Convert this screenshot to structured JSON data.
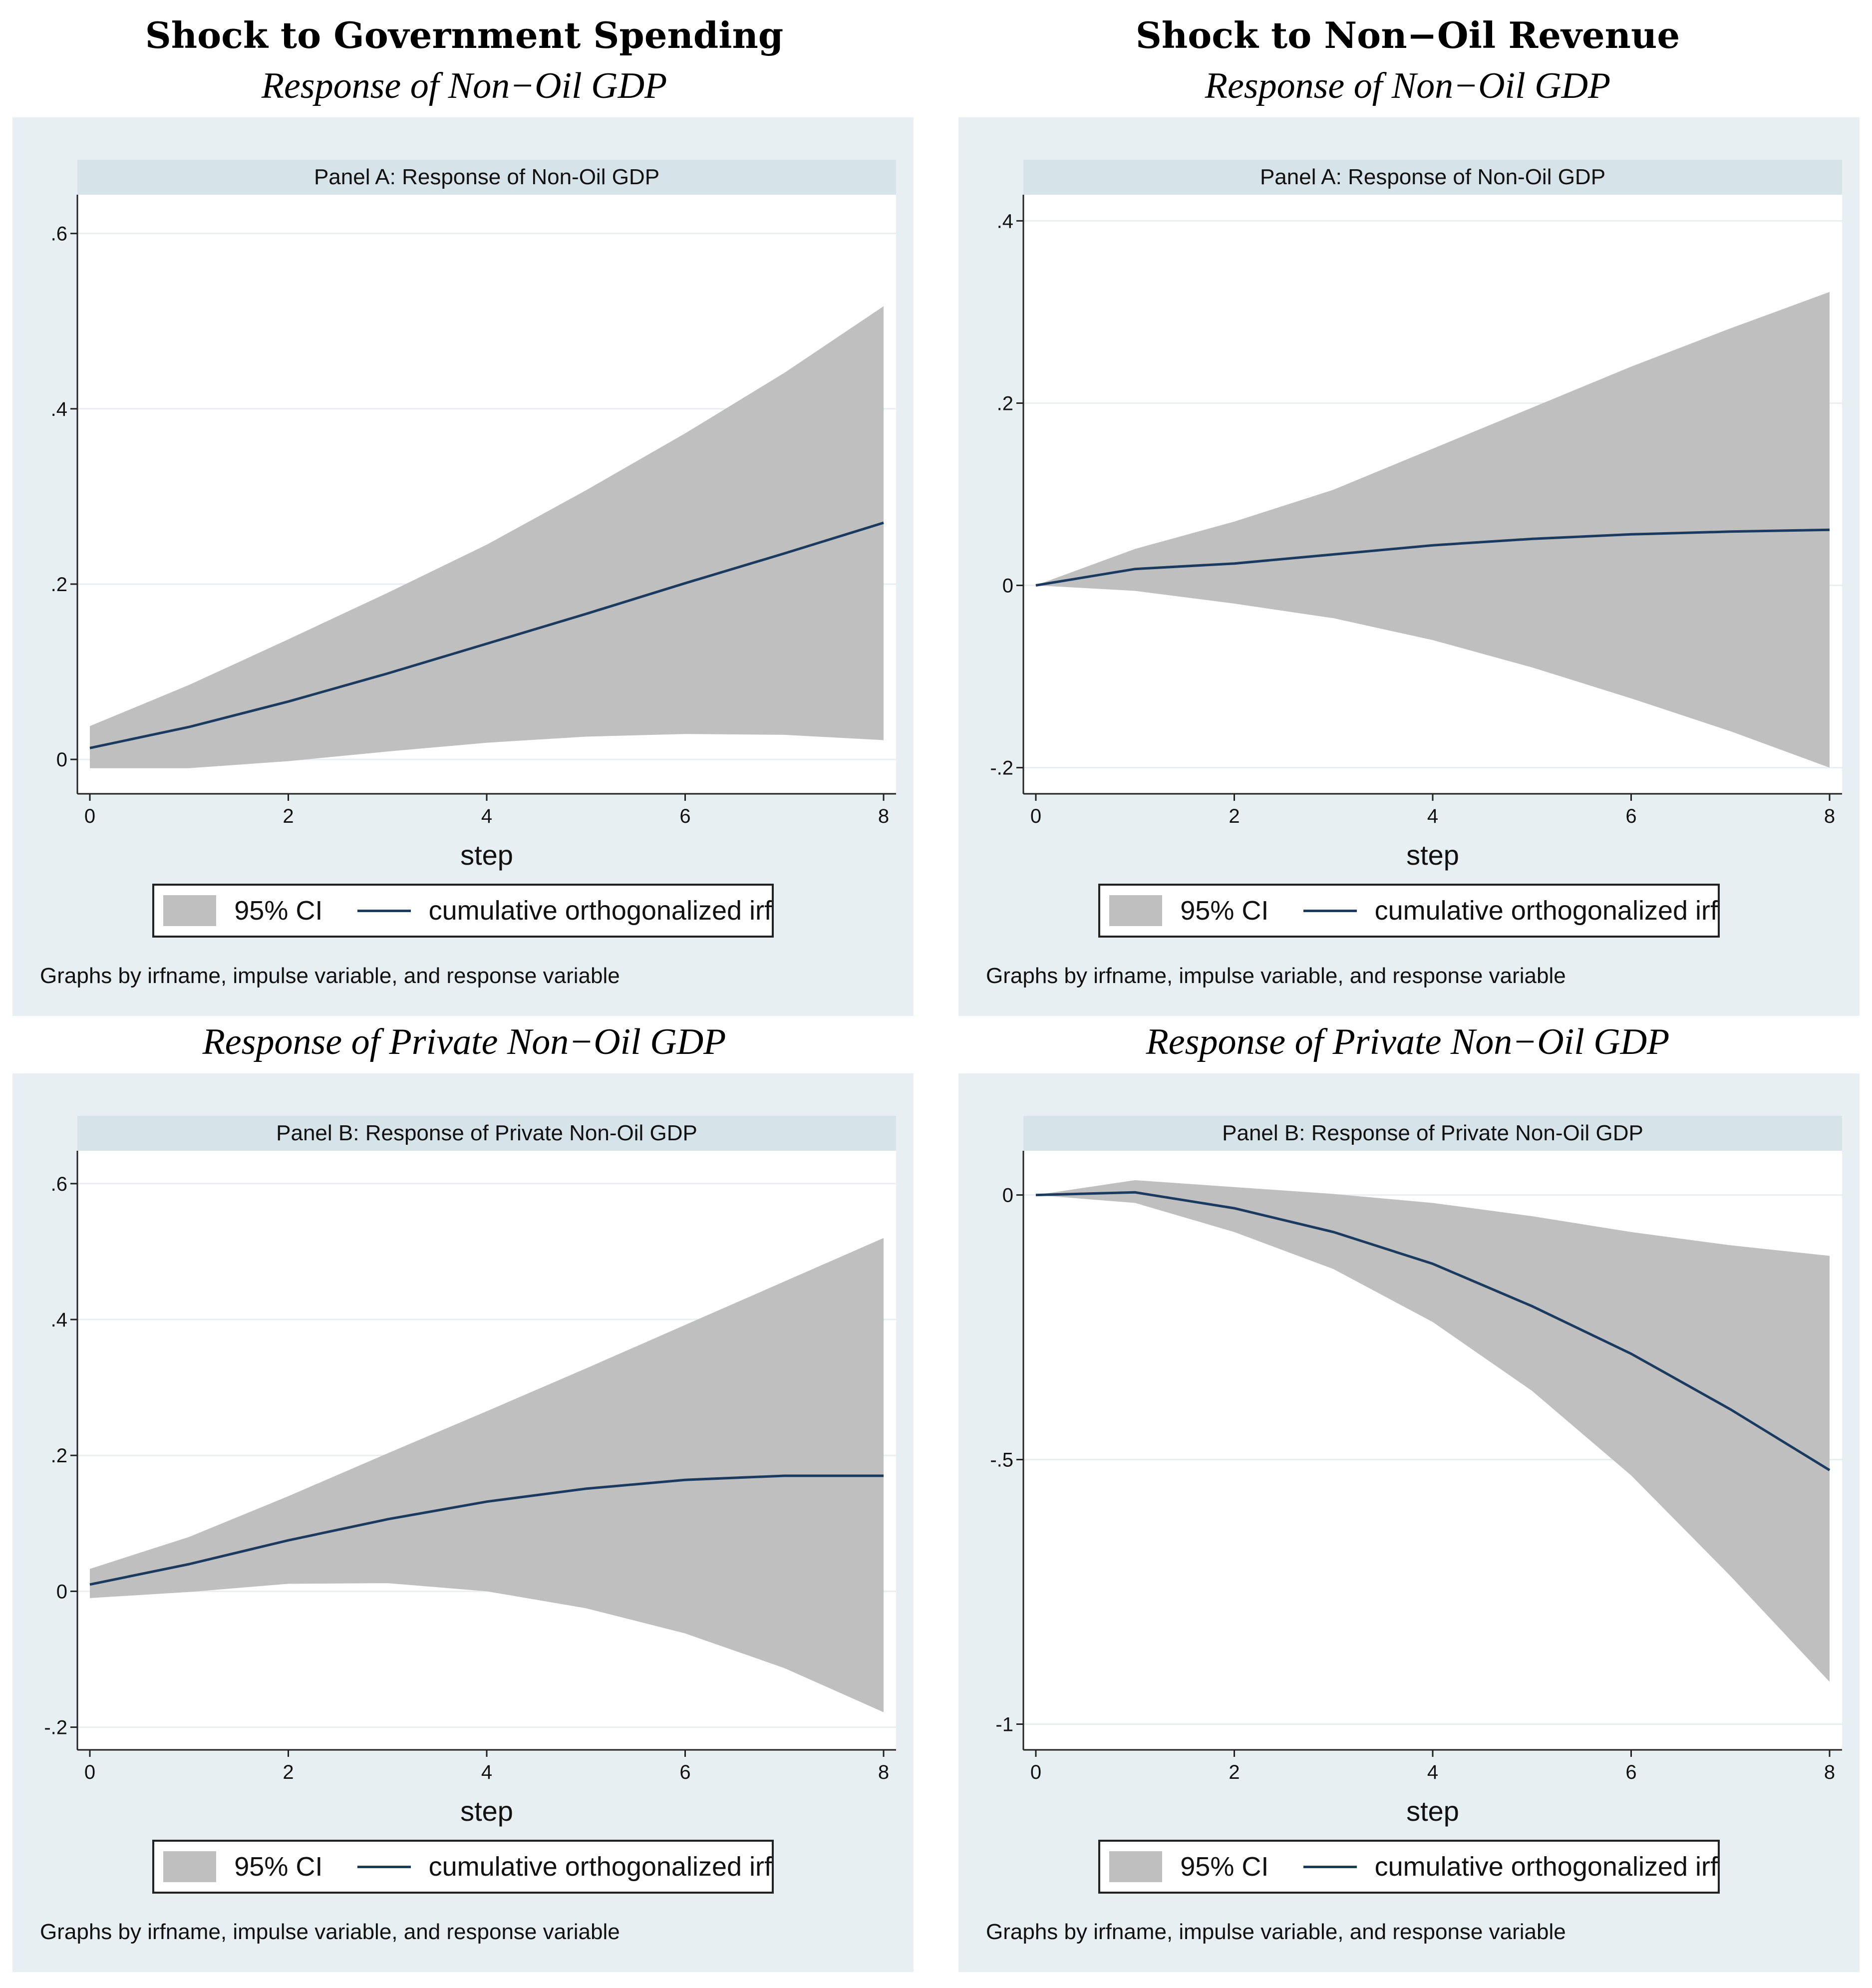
{
  "columns": [
    {
      "title": "Shock to Government Spending"
    },
    {
      "title": "Shock to Non−Oil Revenue"
    }
  ],
  "legend": {
    "ci": "95% CI",
    "irf": "cumulative orthogonalized irf"
  },
  "note": "Graphs by irfname, impulse variable, and response variable",
  "colors": {
    "band": "#bfbfbf",
    "line": "#1a3a5f",
    "outer_bg": "#e8eff2",
    "strip_bg": "#d6e3e8",
    "grid": "#e9eef1"
  },
  "chart_data": [
    {
      "type": "area",
      "subtitle": "Response of Non−Oil GDP",
      "panel_title": "Panel A: Response of Non-Oil GDP",
      "xlabel": "step",
      "x": [
        0,
        1,
        2,
        3,
        4,
        5,
        6,
        7,
        8
      ],
      "xticks": [
        0,
        2,
        4,
        6,
        8
      ],
      "xtick_labels": [
        "0",
        "2",
        "4",
        "6",
        "8"
      ],
      "ylim": [
        -0.025,
        0.63
      ],
      "yticks": [
        0,
        0.2,
        0.4,
        0.6
      ],
      "ytick_labels": [
        "0",
        ".2",
        ".4",
        ".6"
      ],
      "series": [
        {
          "name": "95% CI lower",
          "values": [
            -0.01,
            -0.01,
            -0.002,
            0.009,
            0.019,
            0.026,
            0.029,
            0.028,
            0.022
          ]
        },
        {
          "name": "95% CI upper",
          "values": [
            0.038,
            0.085,
            0.137,
            0.19,
            0.245,
            0.307,
            0.372,
            0.441,
            0.517
          ]
        },
        {
          "name": "cumulative orthogonalized irf",
          "values": [
            0.013,
            0.037,
            0.066,
            0.098,
            0.132,
            0.166,
            0.201,
            0.235,
            0.27
          ]
        }
      ]
    },
    {
      "type": "area",
      "subtitle": "Response of Non−Oil GDP",
      "panel_title": "Panel A: Response of Non-Oil GDP",
      "xlabel": "step",
      "x": [
        0,
        1,
        2,
        3,
        4,
        5,
        6,
        7,
        8
      ],
      "xticks": [
        0,
        2,
        4,
        6,
        8
      ],
      "xtick_labels": [
        "0",
        "2",
        "4",
        "6",
        "8"
      ],
      "ylim": [
        -0.215,
        0.415
      ],
      "yticks": [
        -0.2,
        0,
        0.2,
        0.4
      ],
      "ytick_labels": [
        "-.2",
        "0",
        ".2",
        ".4"
      ],
      "series": [
        {
          "name": "95% CI lower",
          "values": [
            0,
            -0.006,
            -0.02,
            -0.036,
            -0.06,
            -0.09,
            -0.124,
            -0.16,
            -0.2
          ]
        },
        {
          "name": "95% CI upper",
          "values": [
            0,
            0.04,
            0.07,
            0.105,
            0.15,
            0.195,
            0.24,
            0.282,
            0.322
          ]
        },
        {
          "name": "cumulative orthogonalized irf",
          "values": [
            0,
            0.018,
            0.024,
            0.034,
            0.044,
            0.051,
            0.056,
            0.059,
            0.061
          ]
        }
      ]
    },
    {
      "type": "area",
      "subtitle": "Response of Private Non−Oil GDP",
      "panel_title": "Panel B: Response of Private Non-Oil GDP",
      "xlabel": "step",
      "x": [
        0,
        1,
        2,
        3,
        4,
        5,
        6,
        7,
        8
      ],
      "xticks": [
        0,
        2,
        4,
        6,
        8
      ],
      "xtick_labels": [
        "0",
        "2",
        "4",
        "6",
        "8"
      ],
      "ylim": [
        -0.215,
        0.63
      ],
      "yticks": [
        -0.2,
        0,
        0.2,
        0.4,
        0.6
      ],
      "ytick_labels": [
        "-.2",
        "0",
        ".2",
        ".4",
        ".6"
      ],
      "series": [
        {
          "name": "95% CI lower",
          "values": [
            -0.01,
            -0.001,
            0.011,
            0.012,
            0,
            -0.025,
            -0.062,
            -0.113,
            -0.178
          ]
        },
        {
          "name": "95% CI upper",
          "values": [
            0.033,
            0.08,
            0.14,
            0.203,
            0.265,
            0.328,
            0.392,
            0.456,
            0.52
          ]
        },
        {
          "name": "cumulative orthogonalized irf",
          "values": [
            0.01,
            0.04,
            0.075,
            0.106,
            0.132,
            0.151,
            0.164,
            0.17,
            0.17
          ]
        }
      ]
    },
    {
      "type": "area",
      "subtitle": "Response of Private Non−Oil GDP",
      "panel_title": "Panel B: Response of Private Non-Oil GDP",
      "xlabel": "step",
      "x": [
        0,
        1,
        2,
        3,
        4,
        5,
        6,
        7,
        8
      ],
      "xticks": [
        0,
        2,
        4,
        6,
        8
      ],
      "xtick_labels": [
        "0",
        "2",
        "4",
        "6",
        "8"
      ],
      "ylim": [
        -1.025,
        0.06
      ],
      "yticks": [
        -1,
        -0.5,
        0
      ],
      "ytick_labels": [
        "-1",
        "-.5",
        "0"
      ],
      "series": [
        {
          "name": "95% CI lower",
          "values": [
            0,
            -0.015,
            -0.07,
            -0.14,
            -0.24,
            -0.37,
            -0.53,
            -0.72,
            -0.92
          ]
        },
        {
          "name": "95% CI upper",
          "values": [
            0,
            0.028,
            0.015,
            0.002,
            -0.015,
            -0.04,
            -0.07,
            -0.095,
            -0.115
          ]
        },
        {
          "name": "cumulative orthogonalized irf",
          "values": [
            0,
            0.005,
            -0.025,
            -0.07,
            -0.13,
            -0.21,
            -0.3,
            -0.405,
            -0.52
          ]
        }
      ]
    }
  ]
}
